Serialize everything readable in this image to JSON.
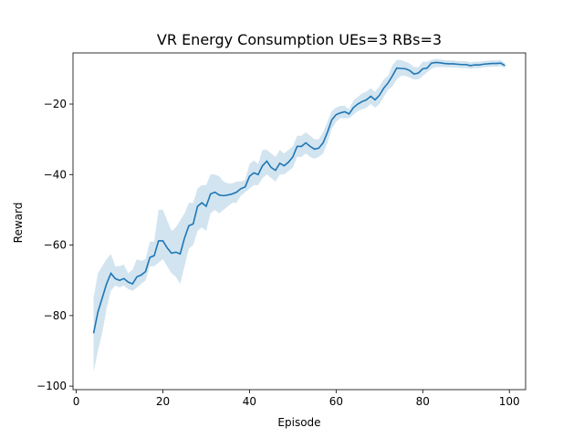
{
  "chart_data": {
    "type": "line",
    "title": "VR Energy Consumption UEs=3 RBs=3",
    "xlabel": "Episode",
    "ylabel": "Reward",
    "xlim": [
      -0.75,
      103.75
    ],
    "ylim": [
      -101,
      -5.5
    ],
    "xticks": [
      0,
      20,
      40,
      60,
      80,
      100
    ],
    "yticks": [
      -100,
      -80,
      -60,
      -40,
      -20
    ],
    "grid": false,
    "line_color": "#1f77b4",
    "band_color": "#1f77b4",
    "series": [
      {
        "x": [
          4,
          5,
          6,
          7,
          8,
          9,
          10,
          11,
          12,
          13,
          14,
          15,
          16,
          17,
          18,
          19,
          20,
          21,
          22,
          23,
          24,
          25,
          26,
          27,
          28,
          29,
          30,
          31,
          32,
          33,
          34,
          35,
          36,
          37,
          38,
          39,
          40,
          41,
          42,
          43,
          44,
          45,
          46,
          47,
          48,
          49,
          50,
          51,
          52,
          53,
          54,
          55,
          56,
          57,
          58,
          59,
          60,
          61,
          62,
          63,
          64,
          65,
          66,
          67,
          68,
          69,
          70,
          71,
          72,
          73,
          74,
          75,
          76,
          77,
          78,
          79,
          80,
          81,
          82,
          83,
          84,
          85,
          86,
          87,
          88,
          89,
          90,
          91,
          92,
          93,
          94,
          95,
          96,
          97,
          98,
          99
        ],
        "y": [
          -85,
          -79,
          -75,
          -71,
          -68,
          -69.5,
          -70,
          -69.5,
          -70.5,
          -71,
          -69,
          -68.5,
          -67.5,
          -63.5,
          -63,
          -58.8,
          -58.8,
          -60.8,
          -62.3,
          -62,
          -62.5,
          -58,
          -54.5,
          -54,
          -49,
          -48,
          -49,
          -45.5,
          -45,
          -45.8,
          -46,
          -45.8,
          -45.5,
          -45,
          -44,
          -43.5,
          -40.5,
          -39.5,
          -40,
          -37.5,
          -36.2,
          -38,
          -38.8,
          -36.8,
          -37.5,
          -36.5,
          -35,
          -32,
          -32,
          -31,
          -32,
          -32.8,
          -32.5,
          -31,
          -28,
          -24.5,
          -23,
          -22.5,
          -22.2,
          -22.8,
          -21,
          -20,
          -19.3,
          -18.8,
          -17.8,
          -18.8,
          -17.5,
          -15.5,
          -14,
          -12,
          -9.8,
          -9.9,
          -10,
          -10.5,
          -11.5,
          -11.2,
          -10,
          -9.8,
          -8.4,
          -8.2,
          -8.3,
          -8.5,
          -8.6,
          -8.6,
          -8.7,
          -8.8,
          -8.8,
          -9.1,
          -8.9,
          -8.9,
          -8.7,
          -8.6,
          -8.5,
          -8.5,
          -8.4,
          -9.1
        ],
        "lower": [
          -96,
          -90,
          -85,
          -78,
          -73,
          -71.5,
          -72,
          -71.5,
          -72.5,
          -73,
          -72,
          -71,
          -70,
          -66,
          -66,
          -65,
          -64,
          -66,
          -68,
          -69,
          -71,
          -66,
          -61,
          -60,
          -56,
          -55,
          -56,
          -51,
          -50,
          -51,
          -50,
          -49,
          -48,
          -48,
          -46,
          -45,
          -44,
          -43,
          -43,
          -41,
          -40,
          -41,
          -42,
          -40,
          -40,
          -39,
          -38,
          -35,
          -35,
          -34,
          -35,
          -35.5,
          -35,
          -34,
          -31,
          -27,
          -25,
          -24,
          -24,
          -24,
          -23,
          -22,
          -21.5,
          -21,
          -20,
          -21,
          -20,
          -18,
          -16,
          -15,
          -13,
          -12,
          -12,
          -12.5,
          -13,
          -13,
          -12,
          -11,
          -10,
          -9.5,
          -9.5,
          -9.5,
          -9.6,
          -9.6,
          -9.7,
          -9.8,
          -9.8,
          -10,
          -9.8,
          -9.8,
          -9.6,
          -9.5,
          -9.4,
          -9.4,
          -9.3,
          -9.8
        ],
        "upper": [
          -75,
          -68,
          -66,
          -64,
          -62.5,
          -66,
          -66,
          -65.5,
          -68,
          -67,
          -64,
          -64.5,
          -64,
          -59,
          -59,
          -50,
          -50,
          -53,
          -56,
          -55,
          -53,
          -51,
          -48,
          -48,
          -44,
          -43,
          -43,
          -40,
          -40,
          -40.5,
          -42,
          -42.5,
          -42.5,
          -42,
          -42,
          -41.5,
          -37,
          -36,
          -37,
          -33,
          -33,
          -34,
          -35,
          -33,
          -34,
          -33,
          -32,
          -29,
          -29,
          -28,
          -29,
          -30,
          -30,
          -28,
          -25,
          -22,
          -21,
          -20.5,
          -20.5,
          -21.5,
          -19,
          -18,
          -17,
          -16.5,
          -15.5,
          -16.5,
          -15,
          -13,
          -12,
          -9,
          -7.5,
          -7.5,
          -8,
          -8.5,
          -9.5,
          -9.5,
          -8,
          -8,
          -7.5,
          -7.2,
          -7.3,
          -7.5,
          -7.6,
          -7.6,
          -7.8,
          -7.8,
          -7.8,
          -8.2,
          -8,
          -8,
          -7.8,
          -7.7,
          -7.6,
          -7.6,
          -7.5,
          -8.4
        ]
      }
    ]
  }
}
